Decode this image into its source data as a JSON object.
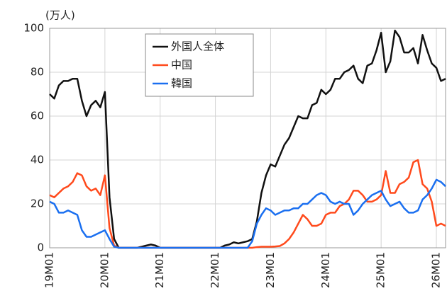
{
  "chart_data": {
    "type": "line",
    "y_unit_label": "(万人)",
    "categories": [
      "19M01",
      null,
      null,
      null,
      null,
      null,
      null,
      null,
      null,
      null,
      null,
      null,
      "20M01",
      null,
      null,
      null,
      null,
      null,
      null,
      null,
      null,
      null,
      null,
      null,
      "21M01",
      null,
      null,
      null,
      null,
      null,
      null,
      null,
      null,
      null,
      null,
      null,
      "22M01",
      null,
      null,
      null,
      null,
      null,
      null,
      null,
      null,
      null,
      null,
      null,
      "23M01",
      null,
      null,
      null,
      null,
      null,
      null,
      null,
      null,
      null,
      null,
      null,
      "24M01",
      null,
      null,
      null,
      null,
      null,
      null,
      null,
      null,
      null,
      null,
      null,
      "25M01",
      null,
      null,
      null,
      null,
      null,
      null,
      null,
      null,
      null,
      null,
      null,
      "26M01",
      null,
      null
    ],
    "series": [
      {
        "name": "外国人全体",
        "color": "#111111",
        "values": [
          70,
          68,
          74,
          76,
          76,
          77,
          77,
          67,
          60,
          65,
          67,
          64,
          71,
          23,
          4,
          0,
          0,
          0,
          0,
          0,
          0.5,
          1,
          1.5,
          1,
          0,
          0,
          0,
          0,
          0,
          0,
          0,
          0,
          0,
          0,
          0,
          0,
          0,
          0,
          1,
          1.5,
          2.5,
          2,
          2.5,
          3,
          4,
          12,
          25,
          33,
          38,
          37,
          42,
          47,
          50,
          55,
          60,
          59,
          59,
          65,
          66,
          72,
          70,
          72,
          77,
          77,
          80,
          81,
          83,
          77,
          75,
          83,
          84,
          90,
          98,
          80,
          85,
          99,
          96,
          89,
          89,
          91,
          84,
          97,
          90,
          84,
          82,
          76,
          77
        ]
      },
      {
        "name": "中国",
        "color": "#ff4a1c",
        "values": [
          24,
          23,
          25,
          27,
          28,
          30,
          34,
          33,
          28,
          26,
          27,
          24,
          33,
          9,
          1,
          0,
          0,
          0,
          0,
          0,
          0,
          0,
          0,
          0,
          0,
          0,
          0,
          0,
          0,
          0,
          0,
          0,
          0,
          0,
          0,
          0,
          0,
          0,
          0,
          0,
          0,
          0,
          0,
          0,
          0,
          0.3,
          0.5,
          0.5,
          0.5,
          0.6,
          0.8,
          2,
          4,
          7,
          11,
          15,
          13,
          10,
          10,
          11,
          15,
          16,
          16,
          19,
          20,
          22,
          26,
          26,
          24,
          21,
          21,
          22,
          24,
          35,
          25,
          25,
          29,
          30,
          32,
          39,
          40,
          29,
          27,
          21,
          10,
          11,
          10
        ]
      },
      {
        "name": "韓国",
        "color": "#1a6ff0",
        "values": [
          21,
          20,
          16,
          16,
          17,
          16,
          15,
          8,
          5,
          5,
          6,
          7,
          8,
          4,
          0.5,
          0,
          0,
          0,
          0,
          0,
          0,
          0,
          0,
          0,
          0,
          0,
          0,
          0,
          0,
          0,
          0,
          0,
          0,
          0,
          0,
          0,
          0,
          0,
          0,
          0,
          0,
          0,
          0,
          0,
          3,
          11,
          15,
          18,
          17,
          15,
          16,
          17,
          17,
          18,
          18,
          20,
          20,
          22,
          24,
          25,
          24,
          21,
          20,
          21,
          20,
          20,
          15,
          17,
          20,
          22,
          24,
          25,
          26,
          22,
          19,
          20,
          21,
          18,
          16,
          16,
          17,
          22,
          24,
          27,
          31,
          30,
          28
        ]
      }
    ],
    "ylim": [
      0,
      100
    ],
    "yticks": [
      0,
      20,
      40,
      60,
      80,
      100
    ],
    "grid": true
  }
}
